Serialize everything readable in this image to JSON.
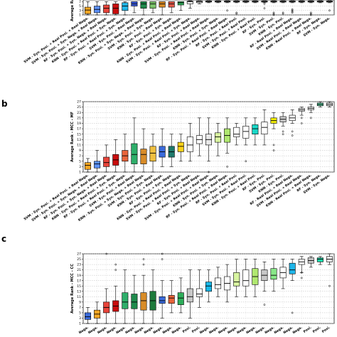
{
  "chart_data": [
    {
      "type": "box",
      "panel": "a",
      "title": "",
      "ylabel": "Average Rank",
      "ylim": [
        1,
        27
      ],
      "yticks": [
        1,
        3,
        5,
        7
      ],
      "grid": true,
      "categories": [
        "SVM - Syn. Posi. + Real Posi. + Real Nega.",
        "SVM - Syn. Posi. + Syn. Nega. + Real Nega.",
        "RF - Syn. Posi. + Syn. Nega. + Real Nega.",
        "KNN - Syn. Posi. + Real Posi. + Syn. Nega.",
        "RF - Syn. Posi. + Real Posi. + Syn. Nega.",
        "SVM - Syn. Posi. + Real Nega.",
        "KNN - Syn. Posi. + Syn. Nega. + Real Nega.",
        "SVM - Syn. Posi. + Syn. Nega.",
        "KNN - Syn. Posi. + Real Nega.",
        "RF - Syn. Posi. + Syn. Nega.",
        "KNN - Syn. Posi. + Real Posi. + Real Nega.",
        "SVM - Syn. Posi. + Real Posi. + Syn. Nega.",
        "RF - Syn. Posi. + Real Nega.",
        "SVM - Syn. Posi. + Real Posi. + Real Nega.",
        "KNN - Syn. Posi. + Syn. Nega.",
        "RF - Syn. Posi. + Real Posi. + Real Nega.",
        "RF - Syn. Posi. + Real Posi.",
        "SVM - Syn. Posi. + Real Posi.",
        "KNN - Syn. Posi. + Real Posi.",
        "RF - Syn. Posi.",
        "SVM - Syn. Posi.",
        "KNN - Syn. Posi.",
        "RF - Real Posi. + Real Nega.",
        "SVM - Real Posi. + Real Nega.",
        "KNN - Real Posi. + Real Nega.",
        "RF - Syn. Nega.",
        "SVM - Syn. Nega."
      ],
      "colors": [
        "#f5a623",
        "#5b8ff9",
        "#e8443a",
        "#c80d0d",
        "#1fb5e8",
        "#3b5bdb",
        "#1f8a4c",
        "#7cc36b",
        "#d98c28",
        "#e05a4a",
        "#2eae5a",
        "#f0f0f0",
        "#ffffff",
        "#f7f7f7",
        "#ffffff",
        "#ffffff",
        "#ffffff",
        "#ffffff",
        "#ffffff",
        "#ffffff",
        "#ffffff",
        "#ffffff",
        "#ffffff",
        "#ffffff",
        "#ffffff",
        "#ffffff",
        "#ffffff"
      ],
      "boxes": [
        {
          "q1": 1.5,
          "med": 3.2,
          "q3": 4.5,
          "wlo": 1,
          "whi": 7
        },
        {
          "q1": 2.0,
          "med": 3.5,
          "q3": 5.0,
          "wlo": 1,
          "whi": 7
        },
        {
          "q1": 2.0,
          "med": 4.0,
          "q3": 5.5,
          "wlo": 1,
          "whi": 7
        },
        {
          "q1": 1.5,
          "med": 4.0,
          "q3": 6.0,
          "wlo": 1,
          "whi": 7
        },
        {
          "q1": 3.0,
          "med": 5.0,
          "q3": 6.5,
          "wlo": 1,
          "whi": 7
        },
        {
          "q1": 5.0,
          "med": 6.0,
          "q3": 7.0,
          "wlo": 2,
          "whi": 7
        },
        {
          "q1": 4.0,
          "med": 6.0,
          "q3": 7.0,
          "wlo": 1,
          "whi": 7
        },
        {
          "q1": 4.0,
          "med": 6.0,
          "q3": 7.0,
          "wlo": 2,
          "whi": 7
        },
        {
          "q1": 4.5,
          "med": 6.0,
          "q3": 7.0,
          "wlo": 1,
          "whi": 7
        },
        {
          "q1": 4.5,
          "med": 6.0,
          "q3": 7.0,
          "wlo": 2,
          "whi": 7
        },
        {
          "q1": 5.5,
          "med": 6.5,
          "q3": 7.0,
          "wlo": 3,
          "whi": 7
        },
        {
          "q1": 6.0,
          "med": 7.0,
          "q3": 7.2,
          "wlo": 4,
          "whi": 7.4
        },
        {
          "q1": 6.5,
          "med": 7.0,
          "q3": 7.3,
          "wlo": 6,
          "whi": 7.4
        },
        {
          "q1": 6.8,
          "med": 7.1,
          "q3": 7.3,
          "wlo": 6.5,
          "whi": 7.4
        },
        {
          "q1": 6.8,
          "med": 7.1,
          "q3": 7.3,
          "wlo": 6.5,
          "whi": 7.4
        },
        {
          "q1": 6.8,
          "med": 7.1,
          "q3": 7.3,
          "wlo": 6.5,
          "whi": 7.4
        },
        {
          "q1": 6.8,
          "med": 7.1,
          "q3": 7.3,
          "wlo": 6.5,
          "whi": 7.4
        },
        {
          "q1": 6.8,
          "med": 7.1,
          "q3": 7.3,
          "wlo": 6.5,
          "whi": 7.4
        },
        {
          "q1": 6.8,
          "med": 7.1,
          "q3": 7.3,
          "wlo": 6.5,
          "whi": 7.4
        },
        {
          "q1": 6.8,
          "med": 7.1,
          "q3": 7.3,
          "wlo": 6.5,
          "whi": 7.4
        },
        {
          "q1": 6.8,
          "med": 7.1,
          "q3": 7.3,
          "wlo": 6.5,
          "whi": 7.4
        },
        {
          "q1": 6.8,
          "med": 7.1,
          "q3": 7.3,
          "wlo": 6.5,
          "whi": 7.4
        },
        {
          "q1": 6.8,
          "med": 7.1,
          "q3": 7.3,
          "wlo": 6.5,
          "whi": 7.4
        },
        {
          "q1": 6.8,
          "med": 7.1,
          "q3": 7.3,
          "wlo": 6.5,
          "whi": 7.4
        },
        {
          "q1": 6.8,
          "med": 7.1,
          "q3": 7.3,
          "wlo": 6.5,
          "whi": 7.4
        },
        {
          "q1": 6.8,
          "med": 7.1,
          "q3": 7.3,
          "wlo": 6.5,
          "whi": 7.4
        },
        {
          "q1": 6.8,
          "med": 7.1,
          "q3": 7.3,
          "wlo": 6.5,
          "whi": 7.4
        }
      ],
      "outliers": [
        [],
        [],
        [],
        [],
        [],
        [],
        [],
        [],
        [],
        [],
        [],
        [],
        [],
        [],
        [],
        [
          3
        ],
        [
          2,
          1.5
        ],
        [],
        [],
        [
          6,
          4
        ],
        [
          2,
          1.5,
          1
        ],
        [
          2,
          1.5
        ],
        [
          3.5,
          3,
          2.5,
          2
        ],
        [],
        [
          2,
          1.5,
          1
        ],
        [],
        [
          3
        ]
      ]
    },
    {
      "type": "box",
      "panel": "b",
      "title": "",
      "ylabel": "Average Rank - MCC - MF",
      "ylim": [
        1,
        27
      ],
      "yticks": [
        1,
        3,
        5,
        7,
        9,
        11,
        13,
        15,
        17,
        19,
        21,
        23,
        25,
        27
      ],
      "grid": true,
      "categories": [
        "SVM - Syn. Posi. + Real Posi. + Real Nega.",
        "SVM - Syn. Posi. + Syn. Nega. + Real Nega.",
        "RF - Syn. Posi. + Syn. Nega. + Real Nega.",
        "KNN - Syn. Posi. + Real Posi. + Syn. Nega.",
        "RF - Syn. Posi. + Real Posi. + Syn. Nega.",
        "SVM - Syn. Posi. + Real Nega.",
        "KNN - Syn. Posi. + Syn. Nega. + Real Nega.",
        "SVM - Syn. Posi. + Syn. Nega.",
        "KNN - Syn. Posi. + Real Nega.",
        "RF - Syn. Posi. + Syn. Nega.",
        "KNN - Syn. Posi. + Real Posi. + Real Nega.",
        "SVM - Syn. Posi. + Real Posi. + Syn. Nega.",
        "RF - Syn. Posi. + Real Nega.",
        "SVM - Syn. Posi. + Real Posi. + Real Nega.",
        "KNN - Syn. Posi. + Syn. Nega.",
        "RF - Syn. Posi. + Real Posi. + Real Nega.",
        "RF - Syn. Posi. + Real Posi.",
        "SVM - Syn. Posi. + Real Posi.",
        "KNN - Syn. Posi. + Real Posi.",
        "RF - Syn. Posi.",
        "SVM - Syn. Posi.",
        "KNN - Syn. Posi.",
        "RF - Real Posi. + Real Nega.",
        "SVM - Real Posi. + Real Nega.",
        "KNN - Real Posi. + Real Nega.",
        "RF - Syn. Nega.",
        "SVM - Syn. Nega."
      ],
      "colors": [
        "#f5a623",
        "#5b8ff9",
        "#e8443a",
        "#c80d0d",
        "#e8643a",
        "#2eae6a",
        "#d98c28",
        "#f0c040",
        "#3b6bdb",
        "#1f7a6c",
        "#ffd21a",
        "#ffffff",
        "#ffffff",
        "#e8e8e8",
        "#d8f5a0",
        "#b0e870",
        "#ffffff",
        "#ffffff",
        "#18d8c8",
        "#ffffff",
        "#f5f000",
        "#c8c8c8",
        "#ffffff",
        "#f5f5f5",
        "#ffffff",
        "#5ad0a0",
        "#ffffff"
      ],
      "boxes": [
        {
          "q1": 2.0,
          "med": 3.5,
          "q3": 4.5,
          "wlo": 1,
          "whi": 6
        },
        {
          "q1": 2.5,
          "med": 4.0,
          "q3": 5.0,
          "wlo": 1,
          "whi": 9
        },
        {
          "q1": 3.0,
          "med": 4.5,
          "q3": 6.5,
          "wlo": 1,
          "whi": 11
        },
        {
          "q1": 3.5,
          "med": 5.5,
          "q3": 7.5,
          "wlo": 1,
          "whi": 13
        },
        {
          "q1": 5.0,
          "med": 7.0,
          "q3": 9.0,
          "wlo": 1,
          "whi": 15
        },
        {
          "q1": 4.0,
          "med": 7.5,
          "q3": 11.5,
          "wlo": 1,
          "whi": 21
        },
        {
          "q1": 4.0,
          "med": 7.5,
          "q3": 9.5,
          "wlo": 1,
          "whi": 17
        },
        {
          "q1": 5.0,
          "med": 8.0,
          "q3": 10.5,
          "wlo": 1,
          "whi": 15
        },
        {
          "q1": 6.5,
          "med": 8.5,
          "q3": 10.5,
          "wlo": 3,
          "whi": 17
        },
        {
          "q1": 6.5,
          "med": 8.5,
          "q3": 10.5,
          "wlo": 3,
          "whi": 15
        },
        {
          "q1": 8.5,
          "med": 10.5,
          "q3": 12.0,
          "wlo": 5,
          "whi": 15
        },
        {
          "q1": 8.5,
          "med": 11.0,
          "q3": 14.0,
          "wlo": 5,
          "whi": 19
        },
        {
          "q1": 11.5,
          "med": 13.0,
          "q3": 14.5,
          "wlo": 7,
          "whi": 21
        },
        {
          "q1": 11.0,
          "med": 13.0,
          "q3": 15.0,
          "wlo": 5,
          "whi": 21
        },
        {
          "q1": 12.0,
          "med": 14.0,
          "q3": 15.5,
          "wlo": 7,
          "whi": 19
        },
        {
          "q1": 12.0,
          "med": 14.5,
          "q3": 17.0,
          "wlo": 8,
          "whi": 21
        },
        {
          "q1": 14.0,
          "med": 15.0,
          "q3": 17.5,
          "wlo": 11,
          "whi": 19
        },
        {
          "q1": 13.5,
          "med": 16.0,
          "q3": 18.0,
          "wlo": 11,
          "whi": 21
        },
        {
          "q1": 15.0,
          "med": 17.0,
          "q3": 18.5,
          "wlo": 11,
          "whi": 21
        },
        {
          "q1": 15.0,
          "med": 17.5,
          "q3": 19.5,
          "wlo": 11,
          "whi": 24
        },
        {
          "q1": 19.0,
          "med": 20.0,
          "q3": 21.0,
          "wlo": 17,
          "whi": 23
        },
        {
          "q1": 19.5,
          "med": 20.5,
          "q3": 21.5,
          "wlo": 18,
          "whi": 23
        },
        {
          "q1": 20.0,
          "med": 21.0,
          "q3": 22.0,
          "wlo": 19,
          "whi": 24
        },
        {
          "q1": 23.5,
          "med": 24.0,
          "q3": 24.5,
          "wlo": 22,
          "whi": 25
        },
        {
          "q1": 24.0,
          "med": 24.5,
          "q3": 25.0,
          "wlo": 23,
          "whi": 26
        },
        {
          "q1": 25.5,
          "med": 26.0,
          "q3": 26.5,
          "wlo": 25,
          "whi": 27
        },
        {
          "q1": 25.5,
          "med": 26.0,
          "q3": 26.5,
          "wlo": 25,
          "whi": 27
        }
      ],
      "outliers": [
        [],
        [],
        [],
        [],
        [],
        [],
        [],
        [],
        [],
        [],
        [],
        [],
        [],
        [
          1
        ],
        [],
        [
          3
        ],
        [],
        [
          5
        ],
        [],
        [],
        [
          11,
          9
        ],
        [
          16,
          15
        ],
        [
          16,
          14.5
        ],
        [
          21,
          19
        ],
        [
          21
        ],
        [],
        []
      ]
    },
    {
      "type": "box",
      "panel": "c",
      "title": "",
      "ylabel": "Average Rank - MCC - CC",
      "ylim": [
        1,
        27
      ],
      "yticks": [
        1,
        3,
        5,
        7,
        9,
        11,
        13,
        15,
        17,
        19,
        21,
        23,
        25,
        27
      ],
      "grid": true,
      "categories": [],
      "visible_xtick_fragments": [
        "Nega.",
        "Nega.",
        "Nega.",
        "Nega.",
        "Nega.",
        "Nega.",
        "Nega.",
        "Nega.",
        "Nega.",
        "Nega.",
        "Nega.",
        "Posi.",
        "Posi.",
        "Nega.",
        "Nega.",
        "Nega.",
        "Nega.",
        "Nega.",
        "Nega.",
        "Nega.",
        "Nega.",
        "Nega.",
        "Nega.",
        "Nega.",
        "Posi.",
        "Posi.",
        "Posi."
      ],
      "colors": [
        "#3b6bdb",
        "#f5a623",
        "#e8443a",
        "#c80d0d",
        "#2eae6a",
        "#1f8a4c",
        "#d98c28",
        "#1f7a3c",
        "#3b6bdb",
        "#e8643a",
        "#2eae5a",
        "#c8c8c8",
        "#ffffff",
        "#18b8e8",
        "#ffffff",
        "#ffffff",
        "#d8f5a0",
        "#ffffff",
        "#b0e870",
        "#c8c8c8",
        "#88e888",
        "#ffffff",
        "#1fb5e8",
        "#ffffff",
        "#c8c8c8",
        "#18d8a8",
        "#f5f5f5"
      ],
      "boxes": [
        {
          "q1": 2.5,
          "med": 3.5,
          "q3": 5.0,
          "wlo": 1,
          "whi": 7
        },
        {
          "q1": 3.0,
          "med": 4.5,
          "q3": 6.0,
          "wlo": 1,
          "whi": 9
        },
        {
          "q1": 5.0,
          "med": 7.0,
          "q3": 9.0,
          "wlo": 1,
          "whi": 14
        },
        {
          "q1": 5.5,
          "med": 7.5,
          "q3": 9.5,
          "wlo": 1,
          "whi": 15
        },
        {
          "q1": 6.5,
          "med": 9.0,
          "q3": 12.5,
          "wlo": 1,
          "whi": 21
        },
        {
          "q1": 6.5,
          "med": 9.0,
          "q3": 12.0,
          "wlo": 1,
          "whi": 19
        },
        {
          "q1": 6.0,
          "med": 9.5,
          "q3": 12.5,
          "wlo": 1,
          "whi": 19
        },
        {
          "q1": 6.0,
          "med": 9.5,
          "q3": 13.0,
          "wlo": 1,
          "whi": 21
        },
        {
          "q1": 8.5,
          "med": 9.5,
          "q3": 11.0,
          "wlo": 3,
          "whi": 17
        },
        {
          "q1": 8.5,
          "med": 10.5,
          "q3": 11.5,
          "wlo": 5,
          "whi": 17
        },
        {
          "q1": 8.0,
          "med": 10.5,
          "q3": 12.5,
          "wlo": 5,
          "whi": 18
        },
        {
          "q1": 9.0,
          "med": 11.0,
          "q3": 14.0,
          "wlo": 3,
          "whi": 21
        },
        {
          "q1": 11.0,
          "med": 12.0,
          "q3": 14.0,
          "wlo": 7,
          "whi": 21
        },
        {
          "q1": 13.0,
          "med": 15.0,
          "q3": 16.5,
          "wlo": 9,
          "whi": 21
        },
        {
          "q1": 14.0,
          "med": 15.5,
          "q3": 18.0,
          "wlo": 11,
          "whi": 22
        },
        {
          "q1": 13.5,
          "med": 16.0,
          "q3": 18.5,
          "wlo": 9,
          "whi": 23
        },
        {
          "q1": 15.0,
          "med": 16.5,
          "q3": 20.0,
          "wlo": 11,
          "whi": 25
        },
        {
          "q1": 15.0,
          "med": 17.0,
          "q3": 21.0,
          "wlo": 11,
          "whi": 25
        },
        {
          "q1": 15.5,
          "med": 18.5,
          "q3": 21.5,
          "wlo": 11,
          "whi": 25
        },
        {
          "q1": 17.0,
          "med": 19.0,
          "q3": 21.0,
          "wlo": 13,
          "whi": 24
        },
        {
          "q1": 17.5,
          "med": 19.0,
          "q3": 21.5,
          "wlo": 13,
          "whi": 25
        },
        {
          "q1": 18.0,
          "med": 20.0,
          "q3": 22.0,
          "wlo": 14,
          "whi": 25
        },
        {
          "q1": 19.5,
          "med": 21.0,
          "q3": 23.5,
          "wlo": 17,
          "whi": 25
        },
        {
          "q1": 23.0,
          "med": 24.0,
          "q3": 25.0,
          "wlo": 20,
          "whi": 26
        },
        {
          "q1": 23.5,
          "med": 24.5,
          "q3": 25.5,
          "wlo": 22,
          "whi": 26
        },
        {
          "q1": 24.0,
          "med": 25.0,
          "q3": 25.5,
          "wlo": 23,
          "whi": 26
        },
        {
          "q1": 24.0,
          "med": 25.0,
          "q3": 26.0,
          "wlo": 23,
          "whi": 27
        }
      ],
      "outliers": [
        [],
        [],
        [
          27
        ],
        [
          21,
          23
        ],
        [],
        [],
        [
          23,
          25
        ],
        [],
        [
          25,
          27
        ],
        [],
        [],
        [],
        [],
        [],
        [],
        [],
        [],
        [],
        [],
        [
          8
        ],
        [],
        [],
        [
          5
        ],
        [
          20,
          18
        ],
        [],
        [],
        [
          15
        ]
      ]
    }
  ],
  "panels": [
    {
      "letter": ""
    },
    {
      "letter": "b"
    },
    {
      "letter": "c"
    }
  ]
}
